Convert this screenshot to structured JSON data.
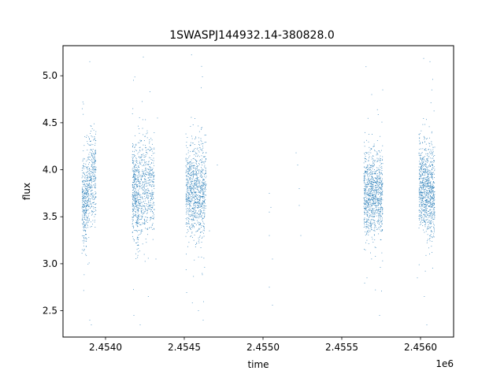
{
  "chart_data": {
    "type": "scatter",
    "title": "1SWASPJ144932.14-380828.0",
    "xlabel": "time",
    "ylabel": "flux",
    "x_offset_label": "1e6",
    "xlim": [
      2.45373,
      2.45621
    ],
    "ylim": [
      2.22,
      5.32
    ],
    "x_ticks": [
      2.454,
      2.4545,
      2.455,
      2.4555,
      2.456
    ],
    "x_tick_labels": [
      "2.4540",
      "2.4545",
      "2.4550",
      "2.4555",
      "2.4560"
    ],
    "y_ticks": [
      2.5,
      3.0,
      3.5,
      4.0,
      4.5,
      5.0
    ],
    "y_tick_labels": [
      "2.5",
      "3.0",
      "3.5",
      "4.0",
      "4.5",
      "5.0"
    ],
    "grid": false,
    "point_color": "#1f77b4",
    "series": [
      {
        "segments": [
          {
            "x_range": [
              2.45385,
              2.45388
            ],
            "y_center": 3.65,
            "y_spread": 0.22,
            "count": 260,
            "trend": 0
          },
          {
            "x_range": [
              2.45388,
              2.45394
            ],
            "y_center": 3.88,
            "y_spread": 0.24,
            "count": 380,
            "trend": 0.15
          },
          {
            "x_range": [
              2.45417,
              2.45421
            ],
            "y_center": 3.75,
            "y_spread": 0.26,
            "count": 380,
            "trend": -0.2
          },
          {
            "x_range": [
              2.45421,
              2.45431
            ],
            "y_center": 3.82,
            "y_spread": 0.25,
            "count": 520,
            "trend": 0
          },
          {
            "x_range": [
              2.45451,
              2.45463
            ],
            "y_center": 3.78,
            "y_spread": 0.25,
            "count": 900,
            "trend": -0.05
          },
          {
            "x_range": [
              2.45463,
              2.45464
            ],
            "y_center": 3.95,
            "y_spread": 0.2,
            "count": 40,
            "trend": 0
          },
          {
            "x_range": [
              2.45564,
              2.45576
            ],
            "y_center": 3.75,
            "y_spread": 0.22,
            "count": 950,
            "trend": 0
          },
          {
            "x_range": [
              2.45599,
              2.45609
            ],
            "y_center": 3.8,
            "y_spread": 0.24,
            "count": 900,
            "trend": -0.15
          }
        ],
        "sparse_points": [
          {
            "x": 2.45471,
            "y": 4.05
          },
          {
            "x": 2.45466,
            "y": 3.35
          },
          {
            "x": 2.45504,
            "y": 3.75
          },
          {
            "x": 2.45504,
            "y": 3.55
          },
          {
            "x": 2.45504,
            "y": 3.3
          },
          {
            "x": 2.45506,
            "y": 3.05
          },
          {
            "x": 2.45505,
            "y": 3.6
          },
          {
            "x": 2.45504,
            "y": 2.75
          },
          {
            "x": 2.45506,
            "y": 2.56
          },
          {
            "x": 2.45522,
            "y": 4.05
          },
          {
            "x": 2.45523,
            "y": 3.8
          },
          {
            "x": 2.45523,
            "y": 3.62
          },
          {
            "x": 2.45524,
            "y": 3.3
          },
          {
            "x": 2.45521,
            "y": 4.18
          },
          {
            "x": 2.4539,
            "y": 5.15
          },
          {
            "x": 2.4539,
            "y": 2.4
          },
          {
            "x": 2.45391,
            "y": 2.35
          },
          {
            "x": 2.45386,
            "y": 4.7
          },
          {
            "x": 2.45424,
            "y": 5.2
          },
          {
            "x": 2.45422,
            "y": 2.35
          },
          {
            "x": 2.45418,
            "y": 2.45
          },
          {
            "x": 2.45461,
            "y": 5.1
          },
          {
            "x": 2.45462,
            "y": 2.4
          },
          {
            "x": 2.45459,
            "y": 2.5
          },
          {
            "x": 2.45569,
            "y": 4.8
          },
          {
            "x": 2.45566,
            "y": 2.85
          },
          {
            "x": 2.45574,
            "y": 2.45
          },
          {
            "x": 2.45576,
            "y": 4.85
          },
          {
            "x": 2.45606,
            "y": 5.15
          },
          {
            "x": 2.45604,
            "y": 2.35
          },
          {
            "x": 2.45598,
            "y": 2.85
          },
          {
            "x": 2.45432,
            "y": 3.05
          },
          {
            "x": 2.45433,
            "y": 4.55
          }
        ]
      }
    ]
  }
}
